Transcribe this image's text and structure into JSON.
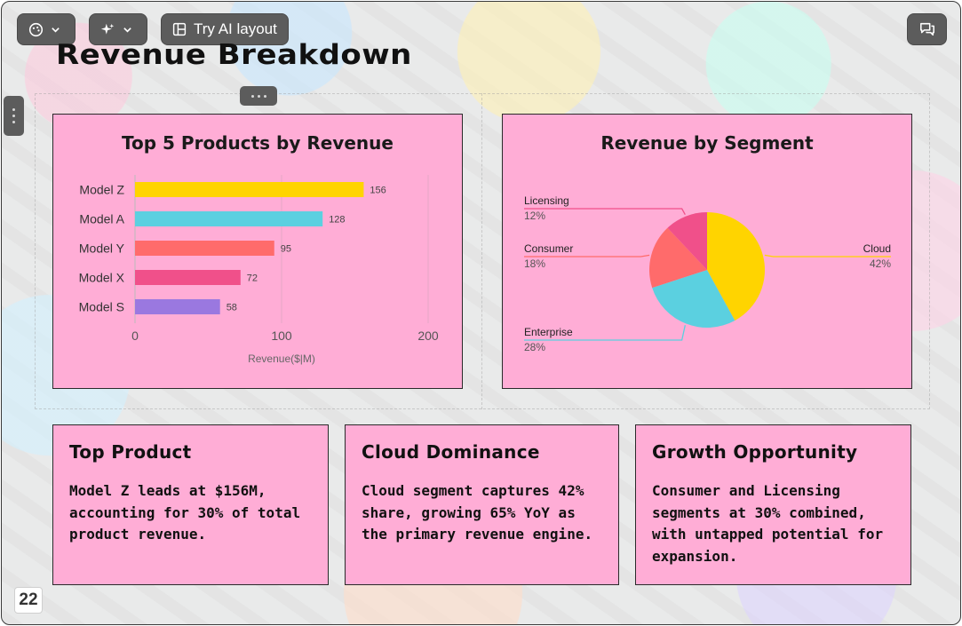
{
  "toolbar": {
    "ai_layout_label": "Try AI layout",
    "theme_icon": "palette-icon",
    "magic_icon": "sparkles-icon",
    "layout_icon": "layout-icon",
    "chat_icon": "comments-icon"
  },
  "slide": {
    "title": "Revenue Breakdown",
    "page_number": "22"
  },
  "bar_chart": {
    "title": "Top 5 Products by Revenue",
    "xlabel": "Revenue($|M)"
  },
  "pie_chart": {
    "title": "Revenue by Segment"
  },
  "chart_data": [
    {
      "type": "bar",
      "orientation": "horizontal",
      "title": "Top 5 Products by Revenue",
      "categories": [
        "Model Z",
        "Model A",
        "Model Y",
        "Model X",
        "Model S"
      ],
      "values": [
        156,
        128,
        95,
        72,
        58
      ],
      "colors": [
        "#ffd400",
        "#5bd0e0",
        "#ff6b6b",
        "#f0508a",
        "#9a78e0"
      ],
      "xlabel": "Revenue($|M)",
      "xlim": [
        0,
        200
      ],
      "xticks": [
        0,
        100,
        200
      ],
      "grid": true
    },
    {
      "type": "pie",
      "title": "Revenue by Segment",
      "labels": [
        "Cloud",
        "Enterprise",
        "Consumer",
        "Licensing"
      ],
      "values": [
        42,
        28,
        18,
        12
      ],
      "value_labels": [
        "42%",
        "28%",
        "18%",
        "12%"
      ],
      "colors": [
        "#ffd400",
        "#5bd0e0",
        "#ff6b6b",
        "#f0508a"
      ]
    }
  ],
  "insights": [
    {
      "title": "Top Product",
      "body": "Model Z leads at $156M, accounting for 30% of total product revenue."
    },
    {
      "title": "Cloud Dominance",
      "body": "Cloud segment captures 42% share, growing 65% YoY as the primary revenue engine."
    },
    {
      "title": "Growth Opportunity",
      "body": "Consumer and Licensing segments at 30% combined, with untapped potential for expansion."
    }
  ]
}
